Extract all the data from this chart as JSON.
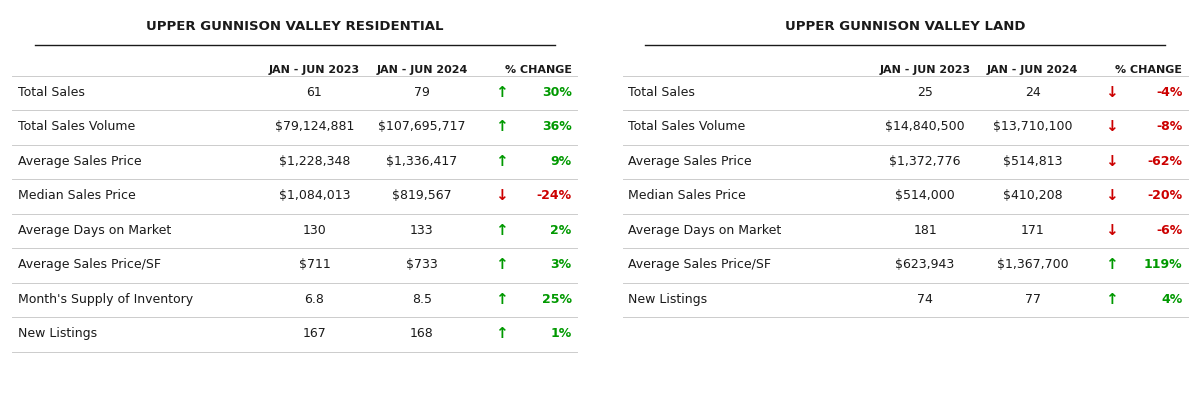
{
  "residential": {
    "title": "UPPER GUNNISON VALLEY RESIDENTIAL",
    "col1": "JAN - JUN 2023",
    "col2": "JAN - JUN 2024",
    "col3": "% CHANGE",
    "rows": [
      {
        "label": "Total Sales",
        "v1": "61",
        "v2": "79",
        "pct": "30%",
        "up": true
      },
      {
        "label": "Total Sales Volume",
        "v1": "$79,124,881",
        "v2": "$107,695,717",
        "pct": "36%",
        "up": true
      },
      {
        "label": "Average Sales Price",
        "v1": "$1,228,348",
        "v2": "$1,336,417",
        "pct": "9%",
        "up": true
      },
      {
        "label": "Median Sales Price",
        "v1": "$1,084,013",
        "v2": "$819,567",
        "pct": "-24%",
        "up": false
      },
      {
        "label": "Average Days on Market",
        "v1": "130",
        "v2": "133",
        "pct": "2%",
        "up": true
      },
      {
        "label": "Average Sales Price/SF",
        "v1": "$711",
        "v2": "$733",
        "pct": "3%",
        "up": true
      },
      {
        "label": "Month's Supply of Inventory",
        "v1": "6.8",
        "v2": "8.5",
        "pct": "25%",
        "up": true
      },
      {
        "label": "New Listings",
        "v1": "167",
        "v2": "168",
        "pct": "1%",
        "up": true
      }
    ]
  },
  "land": {
    "title": "UPPER GUNNISON VALLEY LAND",
    "col1": "JAN - JUN 2023",
    "col2": "JAN - JUN 2024",
    "col3": "% CHANGE",
    "rows": [
      {
        "label": "Total Sales",
        "v1": "25",
        "v2": "24",
        "pct": "-4%",
        "up": false
      },
      {
        "label": "Total Sales Volume",
        "v1": "$14,840,500",
        "v2": "$13,710,100",
        "pct": "-8%",
        "up": false
      },
      {
        "label": "Average Sales Price",
        "v1": "$1,372,776",
        "v2": "$514,813",
        "pct": "-62%",
        "up": false
      },
      {
        "label": "Median Sales Price",
        "v1": "$514,000",
        "v2": "$410,208",
        "pct": "-20%",
        "up": false
      },
      {
        "label": "Average Days on Market",
        "v1": "181",
        "v2": "171",
        "pct": "-6%",
        "up": false
      },
      {
        "label": "Average Sales Price/SF",
        "v1": "$623,943",
        "v2": "$1,367,700",
        "pct": "119%",
        "up": true
      },
      {
        "label": "New Listings",
        "v1": "74",
        "v2": "77",
        "pct": "4%",
        "up": true
      }
    ]
  },
  "bg_color": "#ffffff",
  "text_color": "#1a1a1a",
  "green": "#009900",
  "red": "#cc0000",
  "line_color": "#cccccc",
  "title_fontsize": 9.5,
  "header_fontsize": 8.0,
  "row_fontsize": 9.0,
  "label_fontsize": 9.0
}
